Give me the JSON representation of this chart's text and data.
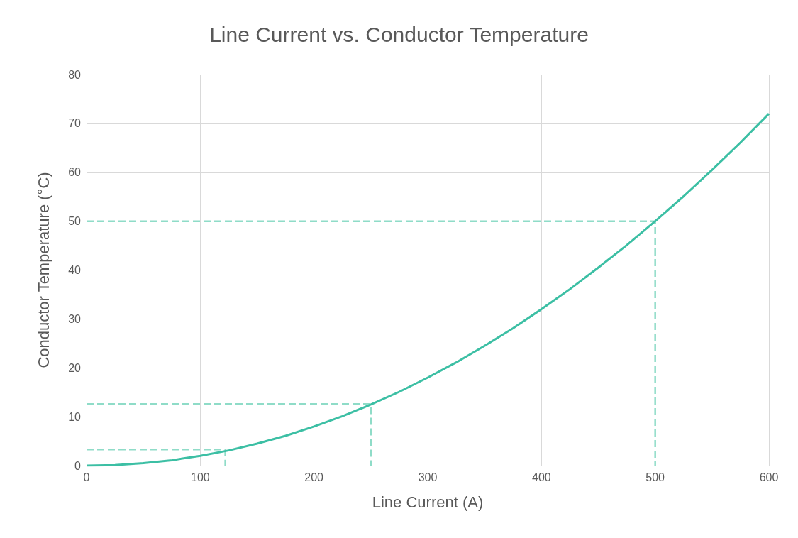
{
  "chart_data": {
    "type": "line",
    "title": "Line Current vs. Conductor Temperature",
    "xlabel": "Line Current (A)",
    "ylabel": "Conductor Temperature (°C)",
    "xlim": [
      0,
      600
    ],
    "xticks": [
      0,
      100,
      200,
      300,
      400,
      500,
      600
    ],
    "ylim": [
      0,
      80
    ],
    "yticks": [
      0,
      10,
      20,
      30,
      40,
      50,
      60,
      70,
      80
    ],
    "grid": true,
    "marker": "none",
    "series": [
      {
        "color": "#3cbfa4",
        "line_style": "solid",
        "x": [
          0,
          25,
          50,
          75,
          100,
          125,
          150,
          175,
          200,
          225,
          250,
          275,
          300,
          325,
          350,
          375,
          400,
          425,
          450,
          475,
          500,
          525,
          550,
          575,
          600
        ],
        "values": [
          0,
          0.1,
          0.5,
          1.1,
          2,
          3.1,
          4.5,
          6.1,
          8,
          10.1,
          12.5,
          15.1,
          18,
          21.1,
          24.5,
          28.1,
          32,
          36.1,
          40.5,
          45.1,
          50,
          55.1,
          60.5,
          66.1,
          72
        ]
      },
      {
        "color": "#8fdcc8",
        "line_style": "dashed",
        "x": [
          0,
          122,
          122
        ],
        "values": [
          3.3,
          3.3,
          0
        ]
      },
      {
        "color": "#8fdcc8",
        "line_style": "dashed",
        "x": [
          0,
          250,
          250
        ],
        "values": [
          12.6,
          12.6,
          0
        ]
      },
      {
        "color": "#8fdcc8",
        "line_style": "dashed",
        "x": [
          0,
          500,
          500
        ],
        "values": [
          50,
          50,
          0
        ]
      }
    ]
  }
}
